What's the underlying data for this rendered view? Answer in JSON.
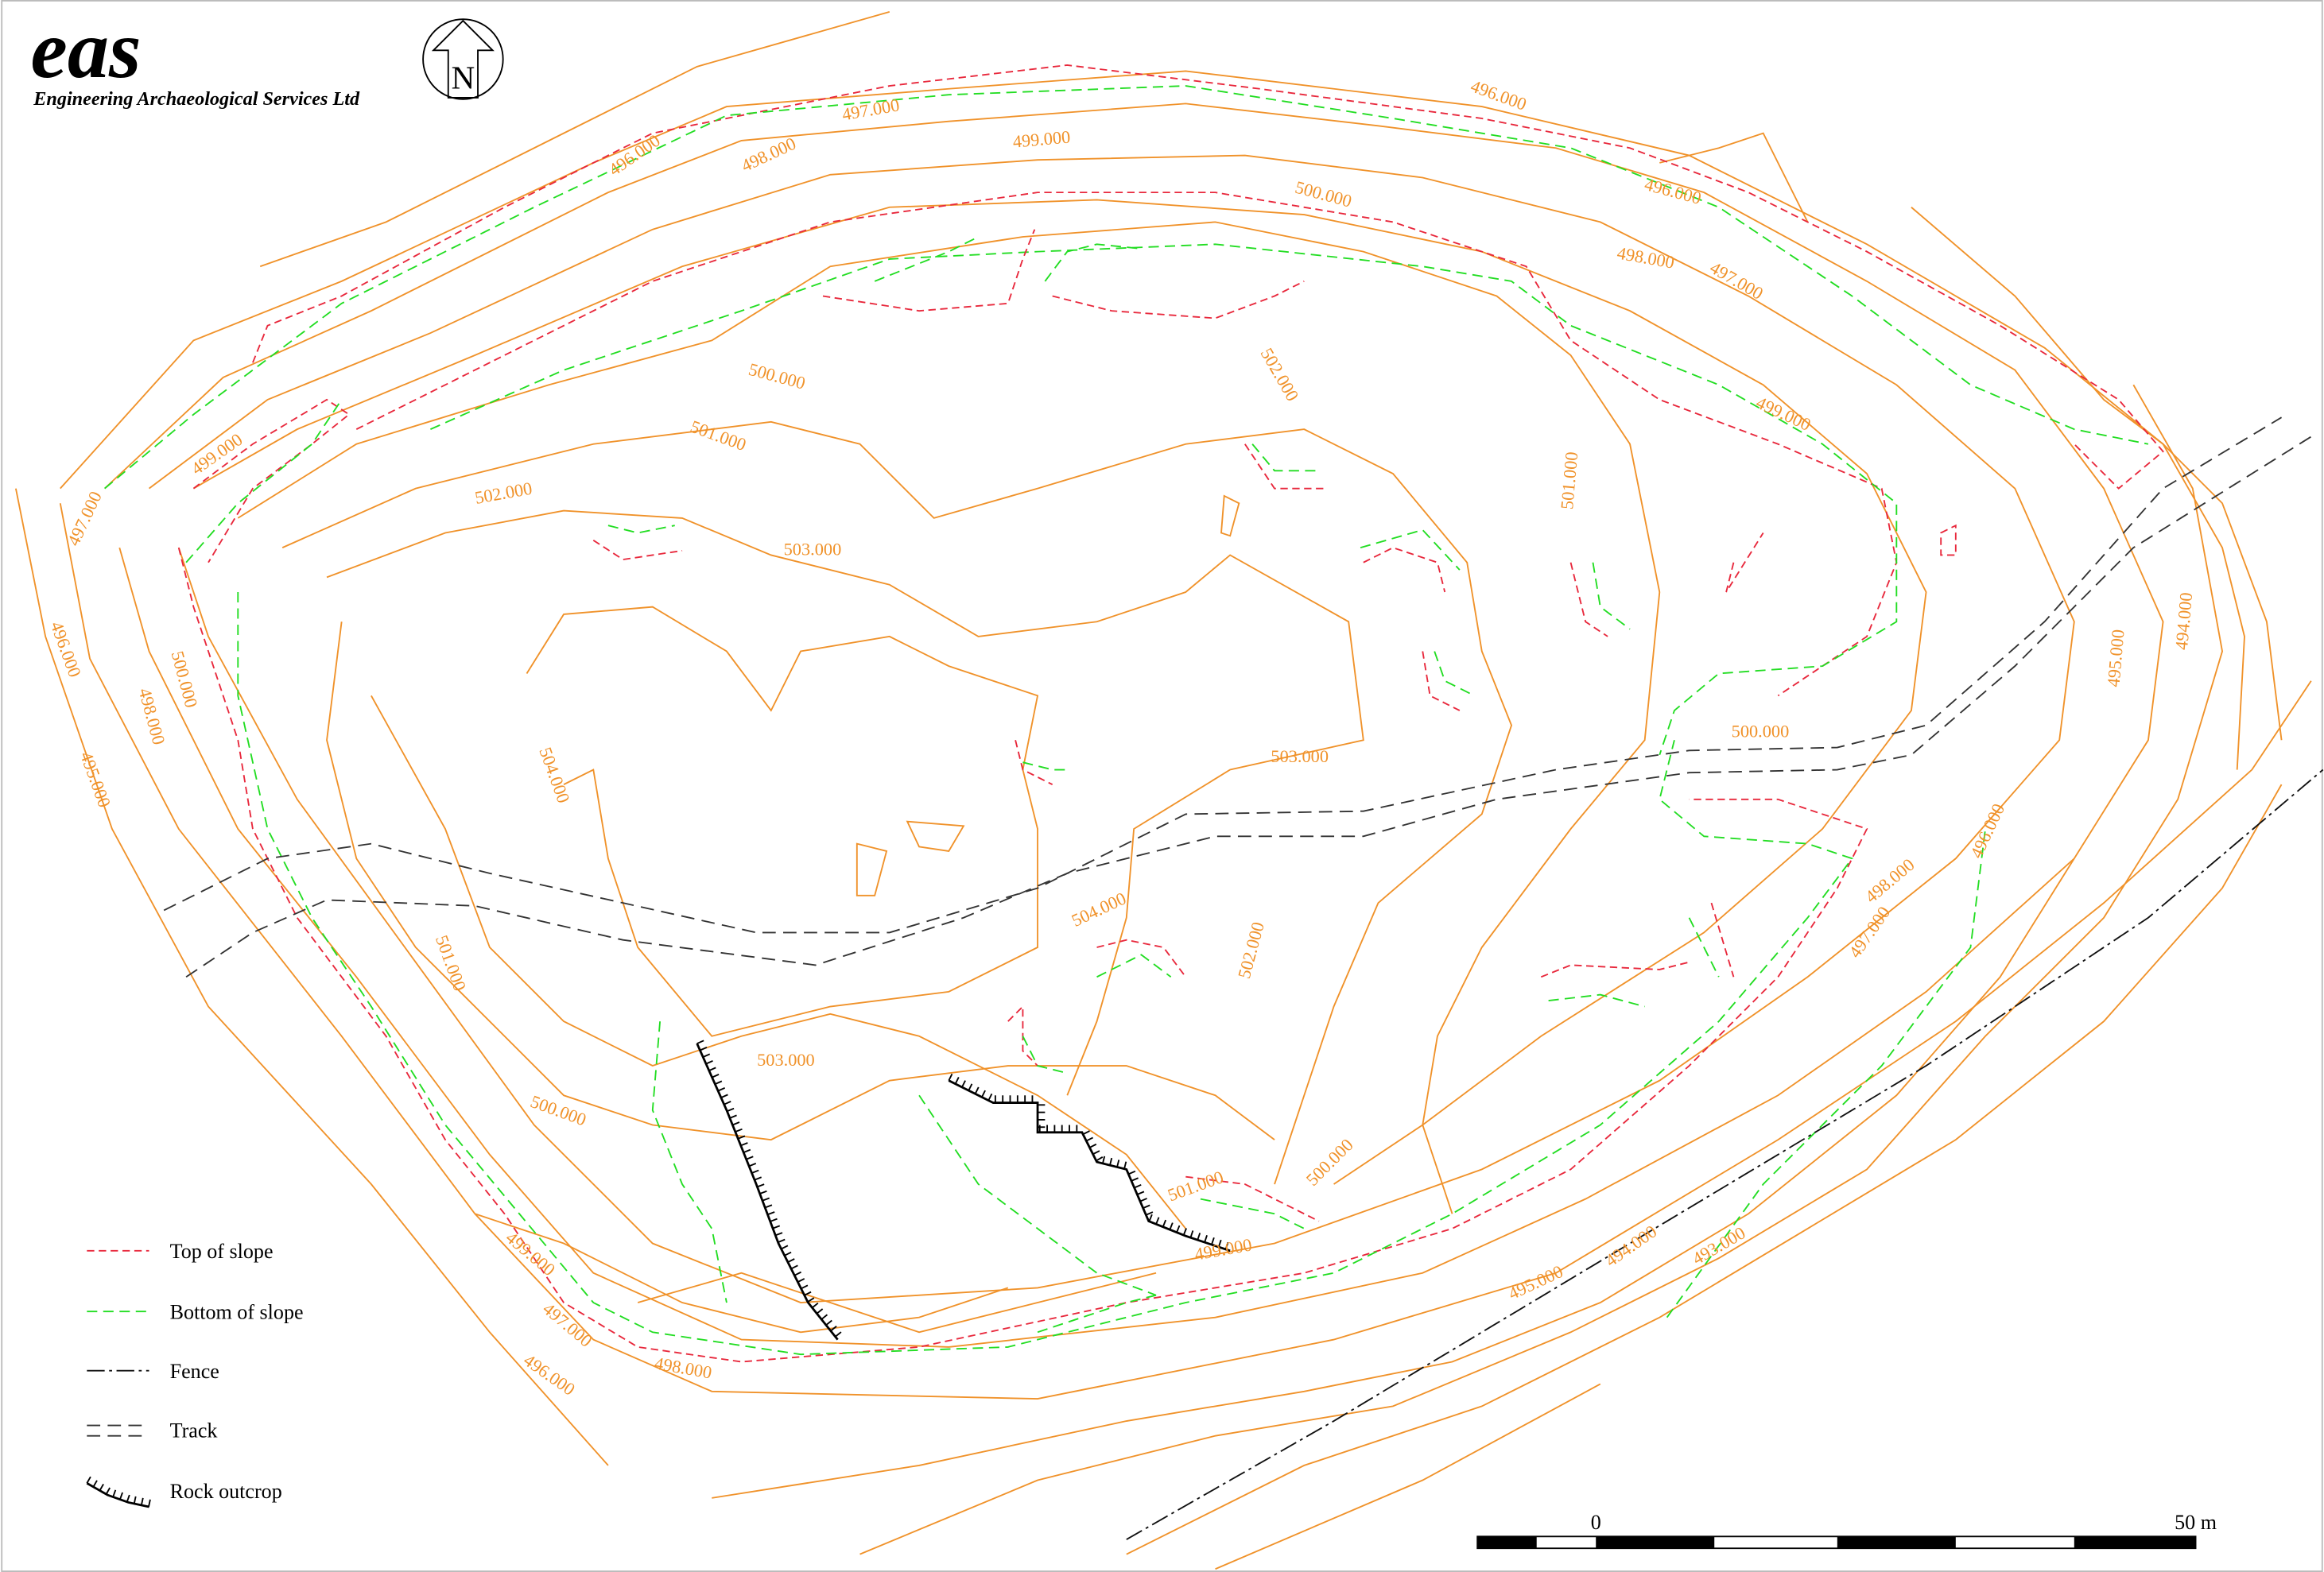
{
  "header": {
    "logo": "eas",
    "company": "Engineering Archaeological Services Ltd",
    "north": "N"
  },
  "contour_labels": [
    "496.000",
    "497.000",
    "496.000",
    "498.000",
    "499.000",
    "496.000",
    "500.000",
    "498.000",
    "497.000",
    "502.000",
    "500.000",
    "501.000",
    "499.000",
    "499.000",
    "497.000",
    "502.000",
    "501.000",
    "503.000",
    "496.000",
    "500.000",
    "498.000",
    "494.000",
    "495.000",
    "495.000",
    "504.000",
    "503.000",
    "500.000",
    "496.000",
    "498.000",
    "497.000",
    "504.000",
    "502.000",
    "501.000",
    "503.000",
    "500.000",
    "500.000",
    "501.000",
    "499.000",
    "499.000",
    "497.000",
    "495.000",
    "494.000",
    "493.000",
    "496.000",
    "498.000"
  ],
  "legend": [
    "Top of slope",
    "Bottom of slope",
    "Fence",
    "Track",
    "Rock outcrop"
  ],
  "scale_bar": {
    "start": "0",
    "end": "50 m"
  }
}
